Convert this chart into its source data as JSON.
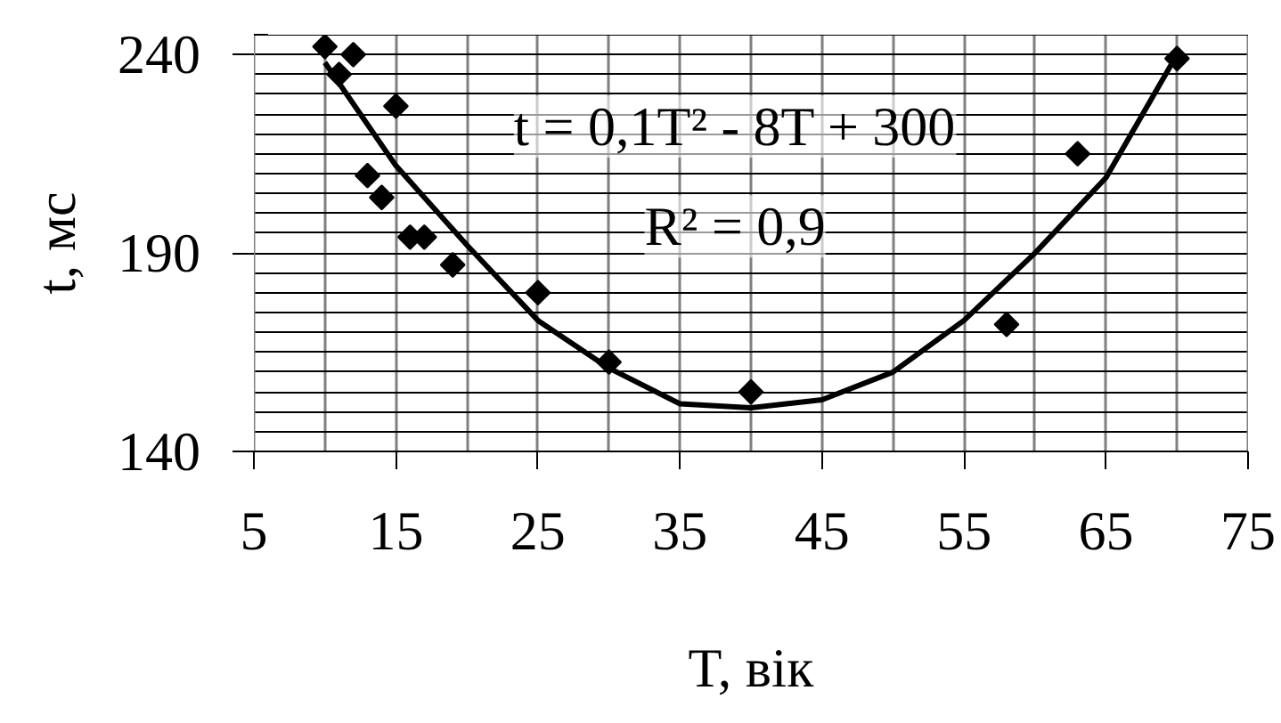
{
  "chart_data": {
    "type": "scatter",
    "xlabel": "T, вік",
    "ylabel": "t, мс",
    "annotations": [
      "t = 0,1T² - 8T + 300",
      "R² = 0,9"
    ],
    "xlim": [
      5,
      75
    ],
    "ylim": [
      140,
      245
    ],
    "xticks": [
      5,
      {
        "value": 10,
        "label": null
      },
      15,
      {
        "value": 20,
        "label": null
      },
      25,
      {
        "value": 30,
        "label": null
      },
      35,
      {
        "value": 40,
        "label": null
      },
      45,
      {
        "value": 50,
        "label": null
      },
      55,
      {
        "value": 60,
        "label": null
      },
      65,
      {
        "value": 70,
        "label": null
      },
      75
    ],
    "yticks": [
      140,
      {
        "value": 145,
        "label": null
      },
      {
        "value": 150,
        "label": null
      },
      {
        "value": 155,
        "label": null
      },
      {
        "value": 160,
        "label": null
      },
      {
        "value": 165,
        "label": null
      },
      {
        "value": 170,
        "label": null
      },
      {
        "value": 175,
        "label": null
      },
      {
        "value": 180,
        "label": null
      },
      {
        "value": 185,
        "label": null
      },
      190,
      {
        "value": 195,
        "label": null
      },
      {
        "value": 200,
        "label": null
      },
      {
        "value": 205,
        "label": null
      },
      {
        "value": 210,
        "label": null
      },
      {
        "value": 215,
        "label": null
      },
      {
        "value": 220,
        "label": null
      },
      {
        "value": 225,
        "label": null
      },
      {
        "value": 230,
        "label": null
      },
      {
        "value": 235,
        "label": null
      },
      240,
      {
        "value": 245,
        "label": null
      }
    ],
    "grid": true,
    "marker": "diamond",
    "series": [
      {
        "color": "#000000",
        "x": [
          10,
          11,
          12,
          13,
          14,
          15,
          16,
          17,
          19,
          25,
          30,
          40,
          58,
          63,
          70
        ],
        "values": [
          242,
          235,
          240,
          209.5,
          204,
          227,
          194,
          194,
          187,
          180,
          162.5,
          155,
          172,
          215,
          239
        ]
      },
      {
        "type": "line",
        "color": "#000000",
        "marker": "none",
        "x": [
          10,
          15,
          20,
          25,
          30,
          35,
          40,
          45,
          50,
          55,
          60,
          65,
          70
        ],
        "values": [
          238,
          212,
          192,
          173,
          161,
          152,
          151,
          153,
          160,
          173,
          190,
          209,
          240
        ]
      }
    ]
  }
}
